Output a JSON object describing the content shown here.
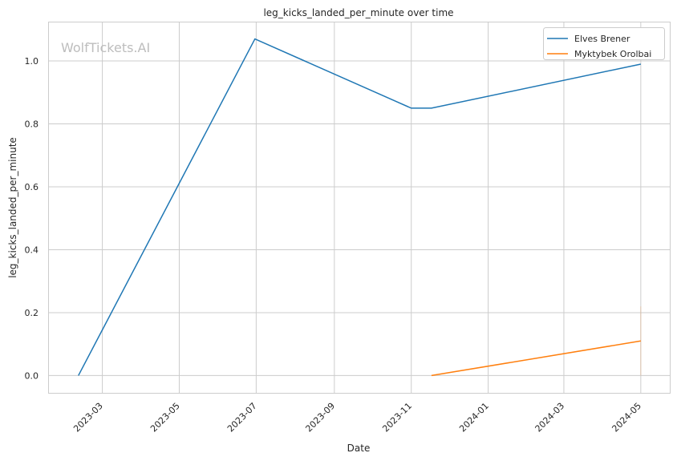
{
  "chart_data": {
    "type": "line",
    "title": "leg_kicks_landed_per_minute over time",
    "xlabel": "Date",
    "ylabel": "leg_kicks_landed_per_minute",
    "watermark": "WolfTickets.AI",
    "xlim": [
      "2023-01-17",
      "2024-05-24"
    ],
    "ylim": [
      -0.055,
      1.125
    ],
    "grid": true,
    "legend_position": "top-right",
    "x_ticks": [
      "2023-03",
      "2023-05",
      "2023-07",
      "2023-09",
      "2023-11",
      "2024-01",
      "2024-03",
      "2024-05"
    ],
    "x_tick_dates": [
      "2023-03-01",
      "2023-05-01",
      "2023-07-01",
      "2023-09-01",
      "2023-11-01",
      "2024-01-01",
      "2024-03-01",
      "2024-05-01"
    ],
    "y_ticks": [
      "0.0",
      "0.2",
      "0.4",
      "0.6",
      "0.8",
      "1.0"
    ],
    "series": [
      {
        "name": "Elves Brener",
        "color": "#1f77b4",
        "x": [
          "2023-02-10",
          "2023-06-30",
          "2023-11-01",
          "2023-11-17",
          "2024-05-01"
        ],
        "y": [
          0.0,
          1.07,
          0.85,
          0.85,
          0.99
        ]
      },
      {
        "name": "Myktybek Orolbai",
        "color": "#ff7f0e",
        "x": [
          "2023-11-17",
          "2024-05-01"
        ],
        "y": [
          0.0,
          0.11
        ],
        "band": {
          "x": "2024-05-01",
          "y": [
            0.0,
            0.22
          ]
        }
      }
    ]
  }
}
